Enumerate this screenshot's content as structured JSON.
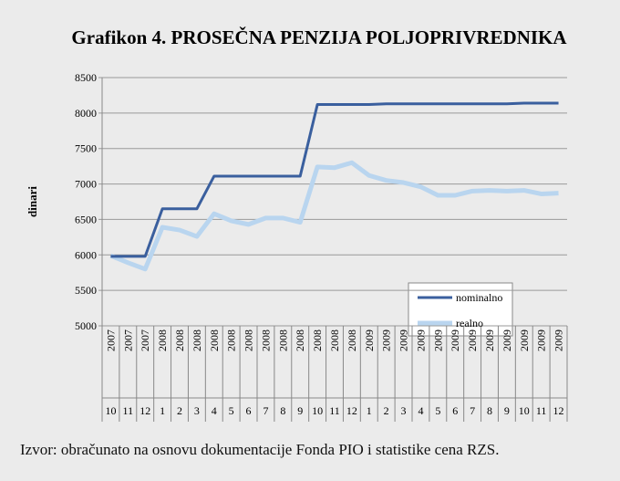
{
  "chart_data": {
    "type": "line",
    "title": "Grafikon 4. PROSEČNA PENZIJA POLJOPRIVREDNIKA",
    "y_label": "dinari",
    "years": [
      "2007",
      "2007",
      "2007",
      "2008",
      "2008",
      "2008",
      "2008",
      "2008",
      "2008",
      "2008",
      "2008",
      "2008",
      "2008",
      "2008",
      "2008",
      "2009",
      "2009",
      "2009",
      "2009",
      "2009",
      "2009",
      "2009",
      "2009",
      "2009",
      "2009",
      "2009",
      "2009"
    ],
    "categories": [
      "10",
      "11",
      "12",
      "1",
      "2",
      "3",
      "4",
      "5",
      "6",
      "7",
      "8",
      "9",
      "10",
      "11",
      "12",
      "1",
      "2",
      "3",
      "4",
      "5",
      "6",
      "7",
      "8",
      "9",
      "10",
      "11",
      "12"
    ],
    "series": [
      {
        "name": "nominalno",
        "color": "#3a5f9e",
        "values": [
          5980,
          5980,
          5980,
          6650,
          6650,
          6650,
          7110,
          7110,
          7110,
          7110,
          7110,
          7110,
          8120,
          8120,
          8120,
          8120,
          8130,
          8130,
          8130,
          8130,
          8130,
          8130,
          8130,
          8130,
          8140,
          8140,
          8140
        ]
      },
      {
        "name": "realno",
        "color": "#b9d5ef",
        "values": [
          5990,
          5890,
          5800,
          6390,
          6350,
          6260,
          6580,
          6480,
          6430,
          6520,
          6520,
          6460,
          7240,
          7230,
          7300,
          7120,
          7050,
          7020,
          6960,
          6840,
          6840,
          6900,
          6910,
          6900,
          6910,
          6860,
          6870
        ]
      }
    ],
    "ylim": [
      5000,
      8500
    ],
    "yticks": [
      5000,
      5500,
      6000,
      6500,
      7000,
      7500,
      8000,
      8500
    ],
    "grid": true,
    "source": "Izvor: obračunato na osnovu dokumentacije Fonda PIO i statistike cena RZS."
  }
}
